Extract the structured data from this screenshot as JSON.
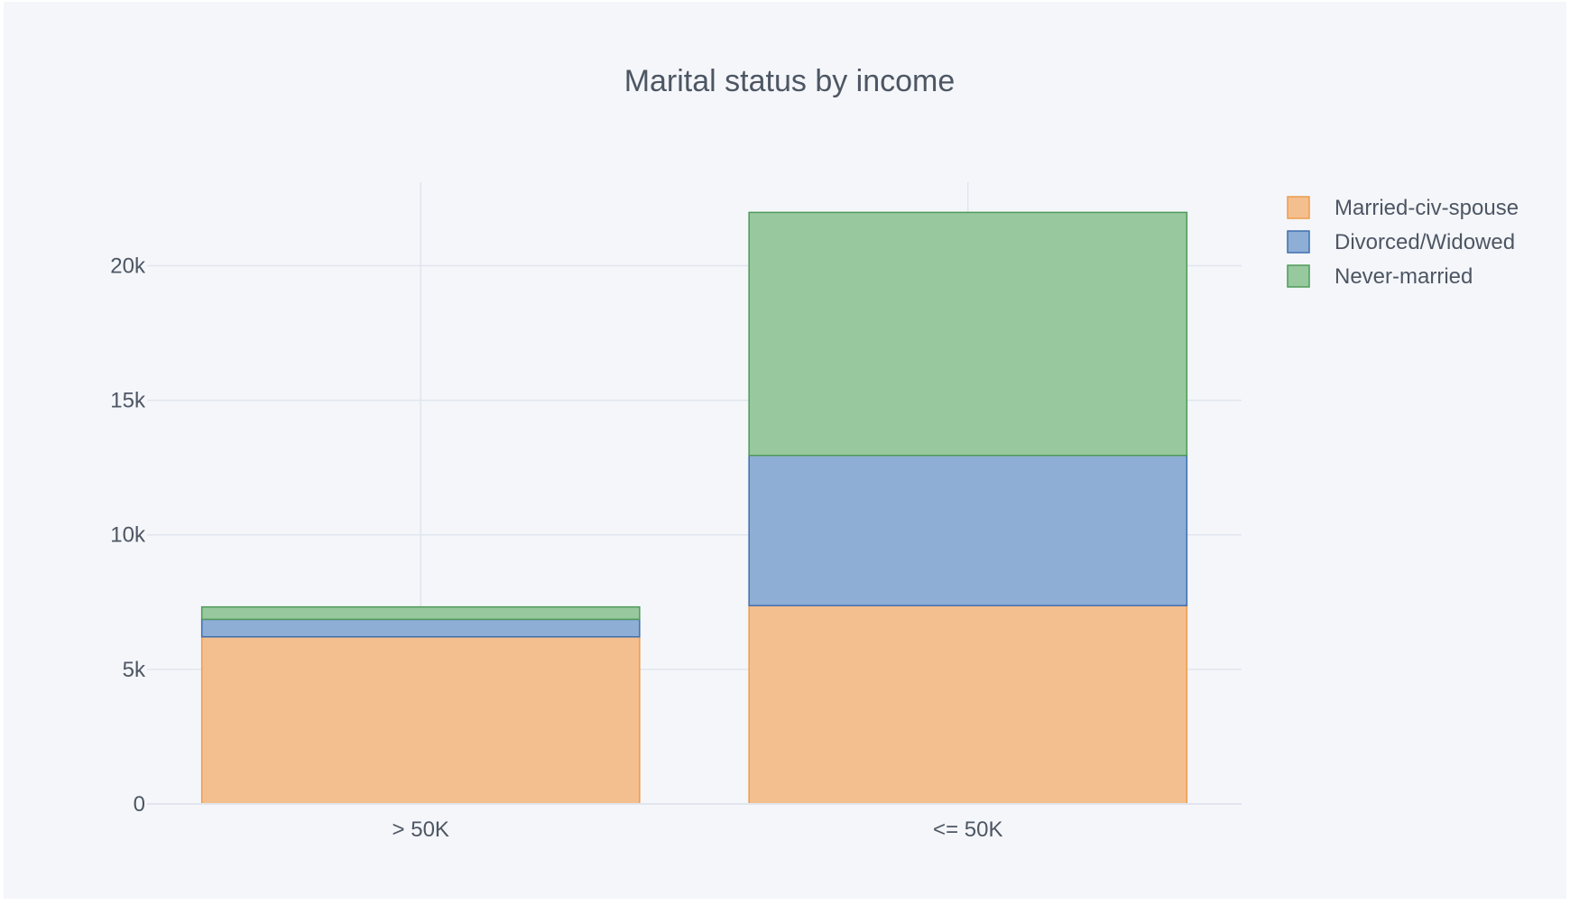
{
  "chart_data": {
    "type": "bar",
    "barmode": "stack",
    "title": "Marital status by income",
    "xlabel": "",
    "ylabel": "",
    "categories": [
      "> 50K",
      "<= 50K"
    ],
    "series": [
      {
        "name": "Married-civ-spouse",
        "values": [
          6210,
          7370
        ],
        "fill": "#f4bf8f",
        "stroke": "#ef9b4c"
      },
      {
        "name": "Divorced/Widowed",
        "values": [
          650,
          5580
        ],
        "fill": "#8eaed5",
        "stroke": "#3f6fae"
      },
      {
        "name": "Never-married",
        "values": [
          460,
          9030
        ],
        "fill": "#98c99e",
        "stroke": "#4e9a58"
      }
    ],
    "ylim": [
      0,
      23100
    ],
    "yticks": [
      0,
      5000,
      10000,
      15000,
      20000
    ],
    "ytick_labels": [
      "0",
      "5k",
      "10k",
      "15k",
      "20k"
    ],
    "grid": true,
    "legend_position": "top-right"
  },
  "colors": {
    "paper_background": "#f4f6fa",
    "plot_background": "#f4f6fa",
    "grid": "#e1e5ed",
    "text": "#4d5663"
  }
}
